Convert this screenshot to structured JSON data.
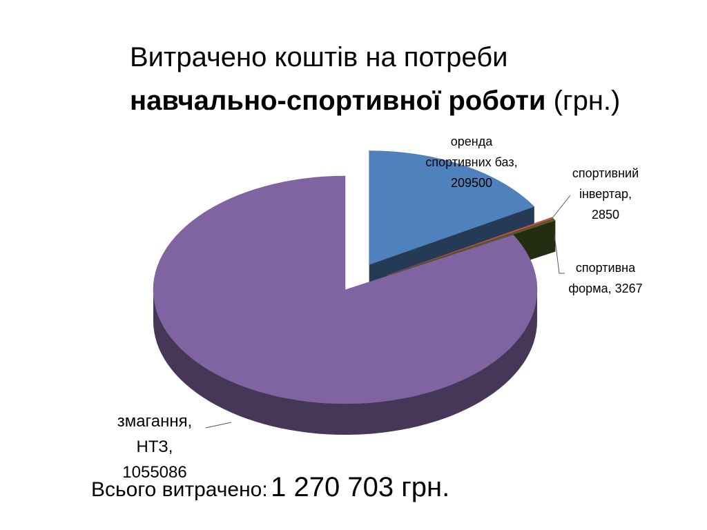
{
  "chart_data": {
    "type": "pie3d",
    "title": "Витрачено коштів на потреби",
    "title_bold": "навчально-спортивної роботи",
    "title_suffix": "(грн.)",
    "categories": [
      "оренда спортивних баз",
      "спортивний інвертар",
      "спортивна форма",
      "змагання, НТЗ"
    ],
    "values": [
      209500,
      2850,
      3267,
      1055086
    ],
    "label_separator": ", ",
    "colors": [
      "#4f81bd",
      "#c0504d",
      "#4f6228",
      "#8064a2"
    ],
    "explode": [
      true,
      true,
      true,
      false
    ],
    "total_label": "Всього витрачено:",
    "total_value": "1 270 703 грн."
  }
}
